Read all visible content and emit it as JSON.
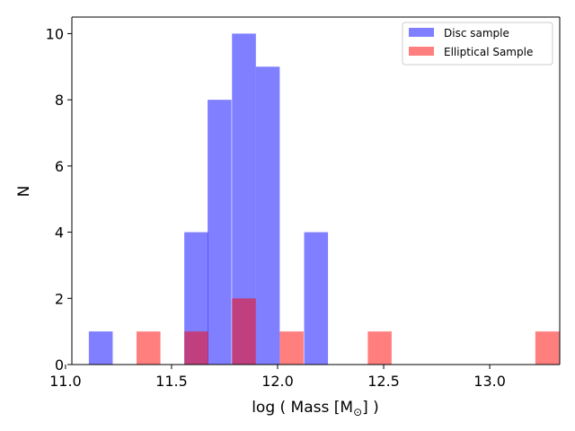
{
  "chart_data": {
    "type": "histogram",
    "xlabel": "log ( Mass [M",
    "xlabel_sub": "⊙",
    "xlabel_suffix": "] )",
    "ylabel": "N",
    "xlim": [
      11.03,
      13.33
    ],
    "ylim": [
      0,
      10.5
    ],
    "bin_width": 0.1125,
    "x_ticks": [
      11.0,
      11.5,
      12.0,
      12.5,
      13.0
    ],
    "x_tick_labels": [
      "11.0",
      "11.5",
      "12.0",
      "12.5",
      "13.0"
    ],
    "y_ticks": [
      0,
      2,
      4,
      6,
      8,
      10
    ],
    "y_tick_labels": [
      "0",
      "2",
      "4",
      "6",
      "8",
      "10"
    ],
    "legend_position": "top-right",
    "series": [
      {
        "name": "Disc sample",
        "color": "#0000ff",
        "opacity": 0.5,
        "bins": [
          {
            "left": 11.11,
            "count": 1
          },
          {
            "left": 11.56,
            "count": 4
          },
          {
            "left": 11.67,
            "count": 8
          },
          {
            "left": 11.785,
            "count": 10
          },
          {
            "left": 11.8975,
            "count": 9
          },
          {
            "left": 12.125,
            "count": 4
          }
        ]
      },
      {
        "name": "Elliptical Sample",
        "color": "#ff0000",
        "opacity": 0.5,
        "bins": [
          {
            "left": 11.335,
            "count": 1
          },
          {
            "left": 11.56,
            "count": 1
          },
          {
            "left": 11.785,
            "count": 2
          },
          {
            "left": 12.01,
            "count": 1
          },
          {
            "left": 12.425,
            "count": 1
          },
          {
            "left": 13.215,
            "count": 1
          }
        ]
      }
    ]
  }
}
